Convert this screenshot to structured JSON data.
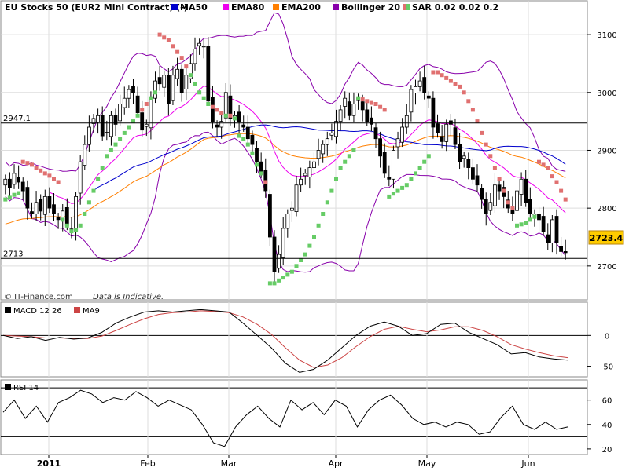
{
  "chart_data": [
    {
      "panel": "price",
      "type": "candlestick",
      "title": "EU Stocks 50 (EUR2 Mini Contract) (-)",
      "legend": [
        {
          "label": "MA50",
          "color": "#0000cc",
          "marker": "solid"
        },
        {
          "label": "EMA80",
          "color": "#ee00ee",
          "marker": "solid"
        },
        {
          "label": "EMA200",
          "color": "#ff7f00",
          "marker": "solid"
        },
        {
          "label": "Bollinger 20 2",
          "color": "#8800aa",
          "marker": "solid"
        },
        {
          "label": "SAR 0.02 0.02 0.2",
          "color": "#66cc66",
          "marker": "split"
        }
      ],
      "ylim": [
        2655,
        3130
      ],
      "y_ticks": [
        2700,
        2800,
        2900,
        3000,
        3100
      ],
      "reference_lines": [
        {
          "label": "2947.1",
          "value": 2947.1
        },
        {
          "label": "2713",
          "value": 2713
        }
      ],
      "last_price": {
        "label": "2723.4",
        "value": 2723.4
      },
      "close": [
        2850,
        2835,
        2860,
        2845,
        2830,
        2800,
        2790,
        2810,
        2795,
        2820,
        2800,
        2790,
        2780,
        2795,
        2770,
        2760,
        2820,
        2880,
        2910,
        2940,
        2955,
        2960,
        2925,
        2930,
        2960,
        2945,
        2980,
        2990,
        3005,
        3000,
        2965,
        2935,
        2945,
        2990,
        3020,
        3015,
        3030,
        2980,
        3030,
        3040,
        3000,
        3030,
        3050,
        3075,
        3085,
        3080,
        2985,
        2950,
        2940,
        2950,
        3000,
        2955,
        2960,
        2950,
        2940,
        2920,
        2910,
        2880,
        2860,
        2830,
        2750,
        2690,
        2720,
        2765,
        2790,
        2800,
        2840,
        2850,
        2860,
        2870,
        2880,
        2900,
        2910,
        2920,
        2930,
        2950,
        2970,
        2990,
        2960,
        2980,
        2990,
        2970,
        2950,
        2945,
        2920,
        2890,
        2860,
        2850,
        2900,
        2920,
        2940,
        2960,
        3005,
        3010,
        3020,
        3000,
        2990,
        2940,
        2930,
        2915,
        2945,
        2945,
        2910,
        2880,
        2890,
        2870,
        2850,
        2840,
        2815,
        2790,
        2810,
        2840,
        2830,
        2820,
        2800,
        2790,
        2830,
        2850,
        2810,
        2790,
        2790,
        2780,
        2760,
        2740,
        2780,
        2740,
        2725,
        2723
      ],
      "sar": [
        2815,
        2818,
        2823,
        2826,
        2880,
        2878,
        2875,
        2870,
        2865,
        2860,
        2856,
        2850,
        2845,
        2780,
        2770,
        2760,
        2762,
        2770,
        2790,
        2810,
        2830,
        2850,
        2870,
        2890,
        2900,
        2910,
        2920,
        2930,
        2940,
        2950,
        2960,
        2970,
        2980,
        2990,
        3000,
        3100,
        3095,
        3090,
        3080,
        3070,
        3060,
        3045,
        3030,
        3015,
        3000,
        2990,
        2980,
        2975,
        2970,
        2965,
        2960,
        2960,
        2955,
        2925,
        2920,
        2910,
        2895,
        2875,
        2860,
        2845,
        2670,
        2670,
        2675,
        2680,
        2685,
        2690,
        2700,
        2710,
        2720,
        2735,
        2750,
        2770,
        2790,
        2810,
        2830,
        2850,
        2870,
        2880,
        2890,
        2900,
        2990,
        2988,
        2985,
        2982,
        2980,
        2975,
        2970,
        2820,
        2825,
        2830,
        2835,
        2840,
        2850,
        2860,
        2870,
        2880,
        2890,
        3035,
        3035,
        3030,
        3025,
        3020,
        3015,
        3010,
        3000,
        2985,
        2970,
        2950,
        2930,
        2910,
        2890,
        2870,
        2850,
        2830,
        2810,
        2800,
        2770,
        2772,
        2775,
        2780,
        2785,
        2880,
        2875,
        2870,
        2855,
        2845,
        2830,
        2815
      ]
    },
    {
      "panel": "macd",
      "type": "line",
      "legend": [
        {
          "label": "MACD 12 26",
          "color": "#000000"
        },
        {
          "label": "MA9",
          "color": "#cc4444"
        }
      ],
      "ylim": [
        -62,
        45
      ],
      "y_ticks": [
        0,
        -50
      ],
      "tick_labels": [
        "0",
        "-50"
      ],
      "series": [
        {
          "name": "MACD 12 26",
          "values": [
            0,
            -5,
            -2,
            -8,
            -3,
            -6,
            -4,
            5,
            20,
            30,
            38,
            40,
            38,
            40,
            42,
            40,
            38,
            20,
            0,
            -20,
            -45,
            -60,
            -55,
            -40,
            -20,
            0,
            15,
            22,
            15,
            0,
            3,
            18,
            20,
            5,
            -5,
            -15,
            -30,
            -28,
            -35,
            -38,
            -40
          ]
        },
        {
          "name": "MA9",
          "values": [
            0,
            -1,
            -2,
            -4,
            -4,
            -5,
            -5,
            -1,
            8,
            18,
            27,
            34,
            37,
            38,
            40,
            39,
            37,
            30,
            18,
            2,
            -20,
            -40,
            -52,
            -48,
            -36,
            -18,
            -2,
            10,
            15,
            10,
            6,
            9,
            14,
            14,
            8,
            -2,
            -15,
            -22,
            -28,
            -33,
            -36
          ]
        }
      ]
    },
    {
      "panel": "rsi",
      "type": "line",
      "legend": [
        {
          "label": "RSI 14",
          "color": "#000000"
        }
      ],
      "ylim": [
        18,
        72
      ],
      "y_ticks": [
        60,
        40,
        20
      ],
      "tick_labels": [
        "60",
        "40",
        "20"
      ],
      "reference_lines": [
        {
          "value": 70
        },
        {
          "value": 30
        }
      ],
      "values": [
        50,
        60,
        45,
        55,
        42,
        58,
        62,
        68,
        65,
        58,
        62,
        60,
        67,
        62,
        55,
        60,
        56,
        52,
        40,
        25,
        22,
        38,
        48,
        55,
        45,
        38,
        60,
        52,
        58,
        48,
        60,
        55,
        38,
        52,
        60,
        64,
        56,
        45,
        40,
        42,
        38,
        42,
        40,
        32,
        34,
        46,
        55,
        40,
        36,
        42,
        36,
        38
      ]
    }
  ],
  "x_axis": {
    "labels": [
      "2011",
      "Feb",
      "Mar",
      "Apr",
      "May",
      "Jun"
    ],
    "label_at_bar": [
      0,
      2,
      4,
      6,
      8,
      10
    ]
  },
  "footer": {
    "brand": "© IT-Finance.com",
    "disclaimer": "Data is Indicative."
  }
}
